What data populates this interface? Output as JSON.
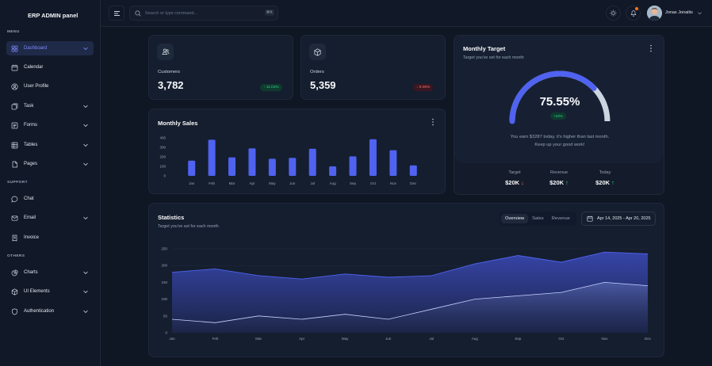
{
  "sidebar": {
    "brand": "ERP ADMIN panel",
    "sections": {
      "menu": "MENU",
      "support": "SUPPORT",
      "others": "OTHERS"
    },
    "items": [
      {
        "label": "Dashboard",
        "icon": "grid-icon",
        "active": true,
        "has_chevron": true
      },
      {
        "label": "Calendar",
        "icon": "calendar-icon",
        "has_chevron": false
      },
      {
        "label": "User Profile",
        "icon": "user-circle-icon",
        "has_chevron": false
      },
      {
        "label": "Task",
        "icon": "task-icon",
        "has_chevron": true
      },
      {
        "label": "Forms",
        "icon": "form-icon",
        "has_chevron": true
      },
      {
        "label": "Tables",
        "icon": "table-icon",
        "has_chevron": true
      },
      {
        "label": "Pages",
        "icon": "page-icon",
        "has_chevron": true
      },
      {
        "label": "Chat",
        "icon": "chat-icon",
        "has_chevron": false
      },
      {
        "label": "Email",
        "icon": "email-icon",
        "has_chevron": true
      },
      {
        "label": "Invoice",
        "icon": "invoice-icon",
        "has_chevron": false
      },
      {
        "label": "Charts",
        "icon": "pie-chart-icon",
        "has_chevron": true
      },
      {
        "label": "UI Elements",
        "icon": "cube-icon",
        "has_chevron": true
      },
      {
        "label": "Authentication",
        "icon": "shield-icon",
        "has_chevron": true
      }
    ]
  },
  "topbar": {
    "search_placeholder": "Search or type command...",
    "search_shortcut": "⌘K",
    "user_name": "Jonas Jonaitis"
  },
  "colors": {
    "accent": "#4f62f0",
    "up": "#34d399",
    "down": "#f87171",
    "background": "#0f1624"
  },
  "metrics": {
    "customers": {
      "label": "Customers",
      "value": "3,782",
      "change": "11.01%",
      "direction": "up",
      "icon": "users-icon"
    },
    "orders": {
      "label": "Orders",
      "value": "5,359",
      "change": "9.05%",
      "direction": "down",
      "icon": "box-icon"
    }
  },
  "monthly_sales": {
    "title": "Monthly Sales"
  },
  "monthly_target": {
    "title": "Monthly Target",
    "subtitle": "Target you've set for each month",
    "percent": "75.55%",
    "progress": 0.7555,
    "badge": "+10%",
    "message_line1": "You earn $3287 today, it's higher than last month.",
    "message_line2": "Keep up your good work!",
    "summary": [
      {
        "label": "Target",
        "value": "$20K",
        "direction": "down"
      },
      {
        "label": "Revenue",
        "value": "$20K",
        "direction": "up"
      },
      {
        "label": "Today",
        "value": "$20K",
        "direction": "up"
      }
    ]
  },
  "statistics": {
    "title": "Statistics",
    "subtitle": "Target you've set for each month",
    "tabs": [
      "Overview",
      "Sales",
      "Revenue"
    ],
    "active_tab": "Overview",
    "date_range": "Apr 14, 2025 - Apr 20, 2025"
  },
  "chart_data": [
    {
      "type": "bar",
      "categories": [
        "Jan",
        "Feb",
        "Mar",
        "Apr",
        "May",
        "Jun",
        "Jul",
        "Aug",
        "Sep",
        "Oct",
        "Nov",
        "Dec"
      ],
      "values": [
        160,
        380,
        195,
        290,
        180,
        190,
        285,
        100,
        205,
        385,
        270,
        110
      ],
      "ylim": [
        0,
        400
      ],
      "yticks": [
        0,
        100,
        200,
        300,
        400
      ],
      "grid": false,
      "color": "#4f62f0"
    },
    {
      "type": "area",
      "categories": [
        "Jan",
        "Feb",
        "Mar",
        "Apr",
        "May",
        "Jun",
        "Jul",
        "Aug",
        "Sep",
        "Oct",
        "Nov",
        "Dec"
      ],
      "series": [
        {
          "values": [
            180,
            190,
            170,
            160,
            175,
            165,
            170,
            205,
            230,
            210,
            240,
            235
          ],
          "color": "#4f62f0"
        },
        {
          "values": [
            40,
            30,
            50,
            40,
            55,
            40,
            70,
            100,
            110,
            120,
            150,
            140
          ],
          "color": "#c7d2fe"
        }
      ],
      "ylim": [
        0,
        250
      ],
      "yticks": [
        0,
        50,
        100,
        150,
        200,
        250
      ],
      "grid": true
    }
  ]
}
